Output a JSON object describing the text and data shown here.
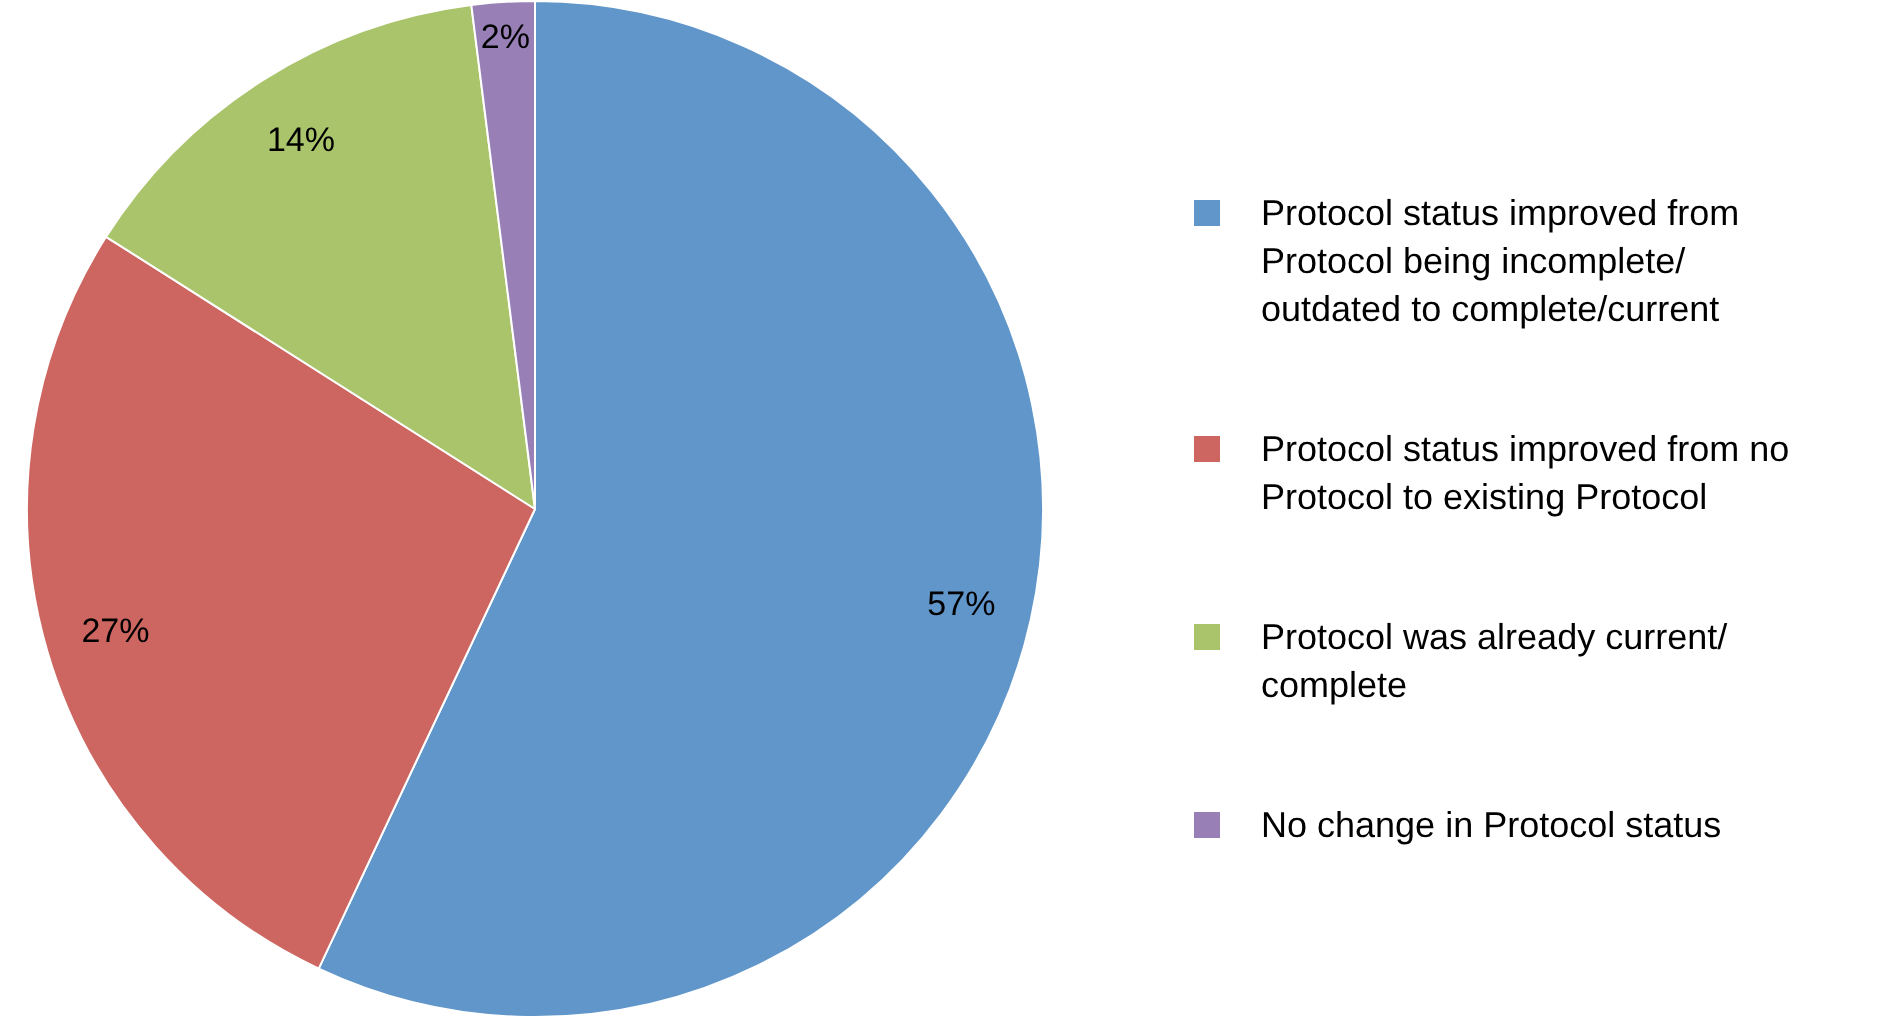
{
  "chart_data": {
    "type": "pie",
    "categories": [
      "Protocol status improved from Protocol being incomplete/ outdated to complete/current",
      "Protocol status improved from no Protocol to existing Protocol",
      "Protocol was already current/ complete",
      "No change in Protocol status"
    ],
    "values": [
      57,
      27,
      14,
      2
    ],
    "value_labels": [
      "57%",
      "27%",
      "14%",
      "2%"
    ],
    "colors": [
      "#6096c9",
      "#cd6660",
      "#a9c46a",
      "#9880b7"
    ],
    "legend": "right"
  }
}
